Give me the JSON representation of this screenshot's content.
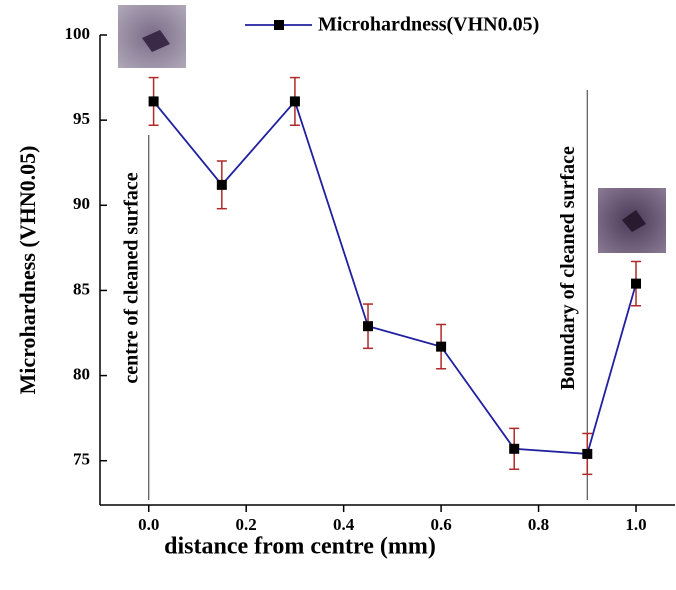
{
  "chart_data": {
    "type": "line",
    "x": [
      0.01,
      0.15,
      0.3,
      0.45,
      0.6,
      0.75,
      0.9,
      1.0
    ],
    "series": [
      {
        "name": "Microhardness(VHN0.05)",
        "color": "#2020a0",
        "values": [
          96.1,
          91.2,
          96.1,
          82.9,
          81.7,
          75.7,
          75.4,
          85.4
        ],
        "errors": [
          1.4,
          1.4,
          1.4,
          1.3,
          1.3,
          1.2,
          1.2,
          1.3
        ]
      }
    ],
    "x_label": "distance from centre (mm)",
    "y_label": "Microhardness (VHN0.05)",
    "xlim": [
      -0.1,
      1.08
    ],
    "ylim": [
      72.4,
      100
    ],
    "xticks": [
      {
        "value": 0,
        "label": "0.0"
      },
      0.2,
      0.4,
      0.6,
      0.8,
      {
        "value": 1,
        "label": "1.0"
      }
    ],
    "yticks": [
      75,
      80,
      85,
      90,
      95,
      100
    ],
    "annotations": [
      {
        "text": "centre of cleaned surface",
        "x": 0
      },
      {
        "text": "Boundary of cleaned surface",
        "x": 0.9
      }
    ],
    "error_color": "#b02828",
    "marker_color": "#000000",
    "legend": "top"
  }
}
